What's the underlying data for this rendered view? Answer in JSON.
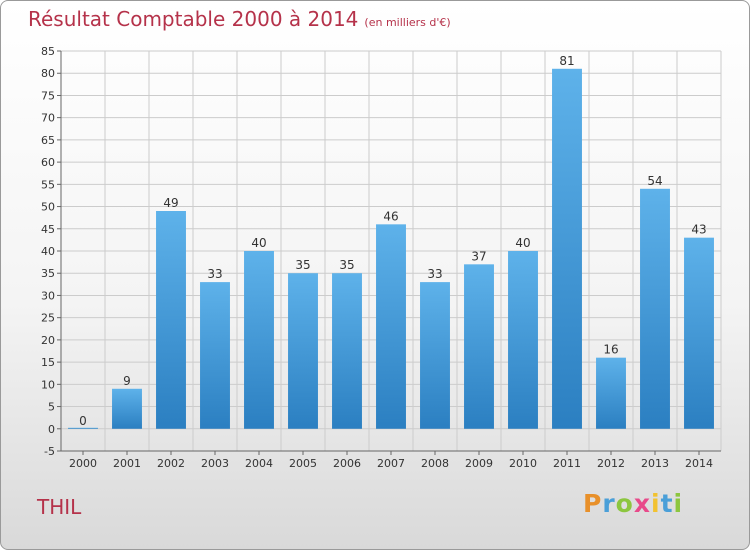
{
  "header": {
    "title": "Résultat Comptable 2000 à 2014",
    "subtitle": "(en milliers d'€)"
  },
  "footer": {
    "city": "THIL",
    "logo_letters": [
      "P",
      "r",
      "o",
      "x",
      "i",
      "t",
      "i"
    ]
  },
  "colors": {
    "bar": "#3d95d6",
    "bar_top": "#5eb2ea",
    "title": "#b5324a",
    "grid": "#cccccc"
  },
  "chart_data": {
    "type": "bar",
    "title": "Résultat Comptable 2000 à 2014",
    "subtitle": "(en milliers d'€)",
    "xlabel": "",
    "ylabel": "",
    "categories": [
      "2000",
      "2001",
      "2002",
      "2003",
      "2004",
      "2005",
      "2006",
      "2007",
      "2008",
      "2009",
      "2010",
      "2011",
      "2012",
      "2013",
      "2014"
    ],
    "values": [
      0,
      9,
      49,
      33,
      40,
      35,
      35,
      46,
      33,
      37,
      40,
      81,
      16,
      54,
      43
    ],
    "ylim": [
      -5,
      85
    ],
    "yticks": [
      -5,
      0,
      5,
      10,
      15,
      20,
      25,
      30,
      35,
      40,
      45,
      50,
      55,
      60,
      65,
      70,
      75,
      80,
      85
    ],
    "grid": true,
    "legend": "none"
  }
}
